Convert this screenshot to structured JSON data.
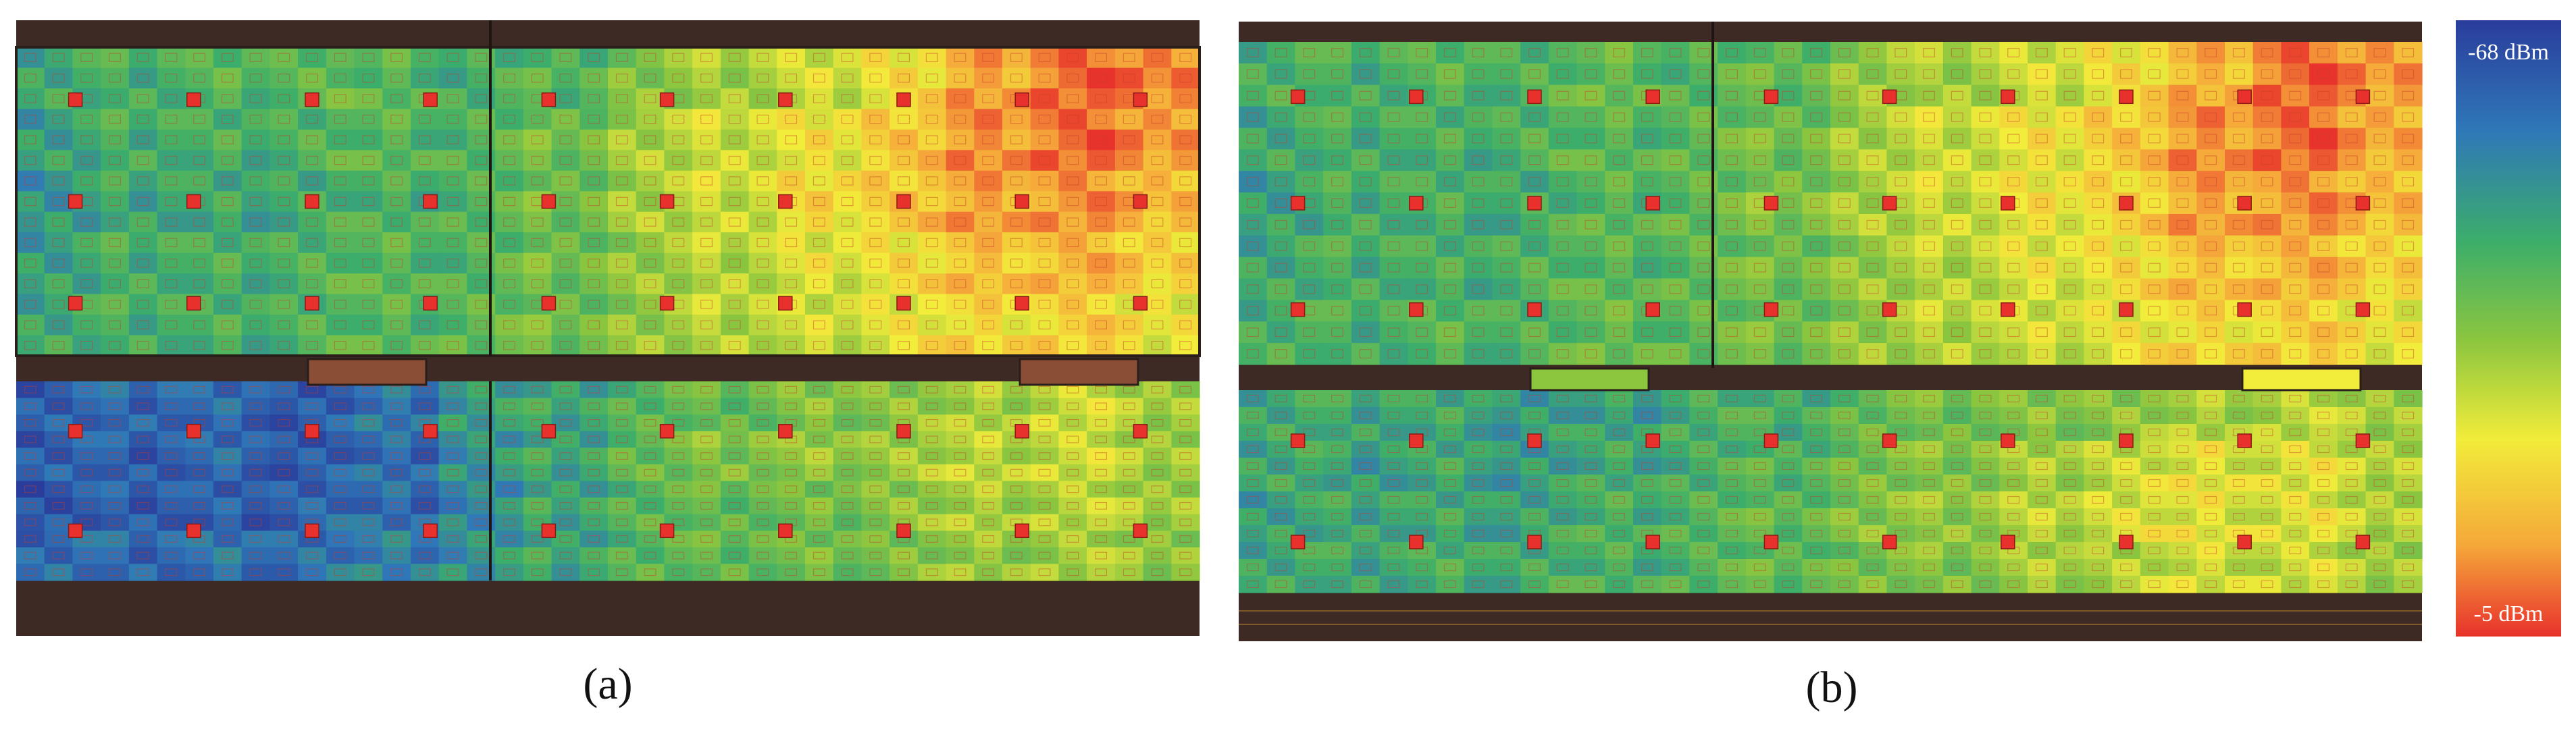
{
  "figure": {
    "panels": [
      {
        "id": "a",
        "caption": "(a)"
      },
      {
        "id": "b",
        "caption": "(b)"
      }
    ]
  },
  "colorbar": {
    "top_label": "-68 dBm",
    "bottom_label": "-5 dBm",
    "colors": [
      "#2a3d9c",
      "#2f78b8",
      "#3cae6a",
      "#8cc63f",
      "#f2ec3a",
      "#f5a93a",
      "#e8312c"
    ]
  },
  "chart_data": [
    {
      "type": "heatmap",
      "title": "",
      "caption": "(a)",
      "units": "dBm",
      "range": [
        -68,
        -5
      ],
      "rows": 5,
      "cols": 14,
      "regions": [
        "upper floor area",
        "lower floor area"
      ],
      "upper": [
        [
          -48,
          -46,
          -44,
          -42,
          -44,
          -46,
          -44,
          -38,
          -34,
          -30,
          -24,
          -16,
          -10,
          -12
        ],
        [
          -50,
          -46,
          -46,
          -44,
          -44,
          -44,
          -40,
          -34,
          -30,
          -26,
          -20,
          -14,
          -10,
          -14
        ],
        [
          -52,
          -48,
          -48,
          -46,
          -46,
          -44,
          -40,
          -34,
          -30,
          -24,
          -20,
          -16,
          -14,
          -18
        ],
        [
          -50,
          -46,
          -46,
          -44,
          -44,
          -44,
          -40,
          -36,
          -32,
          -28,
          -24,
          -20,
          -18,
          -22
        ],
        [
          -48,
          -46,
          -46,
          -44,
          -44,
          -42,
          -40,
          -36,
          -32,
          -30,
          -26,
          -24,
          -22,
          -26
        ]
      ],
      "lower": [
        [
          -62,
          -60,
          -60,
          -62,
          -58,
          -50,
          -48,
          -44,
          -42,
          -38,
          -36,
          -34,
          -30,
          -34
        ],
        [
          -62,
          -62,
          -60,
          -62,
          -60,
          -52,
          -48,
          -42,
          -38,
          -36,
          -34,
          -32,
          -30,
          -34
        ],
        [
          -64,
          -62,
          -62,
          -60,
          -60,
          -54,
          -48,
          -44,
          -42,
          -40,
          -36,
          -34,
          -32,
          -34
        ],
        [
          -60,
          -60,
          -58,
          -58,
          -56,
          -52,
          -48,
          -44,
          -42,
          -40,
          -38,
          -36,
          -34,
          -36
        ]
      ]
    },
    {
      "type": "heatmap",
      "title": "",
      "caption": "(b)",
      "units": "dBm",
      "range": [
        -68,
        -5
      ],
      "rows": 5,
      "cols": 14,
      "upper": [
        [
          -46,
          -46,
          -44,
          -44,
          -42,
          -44,
          -42,
          -36,
          -34,
          -30,
          -24,
          -18,
          -10,
          -14
        ],
        [
          -48,
          -46,
          -46,
          -44,
          -44,
          -42,
          -40,
          -34,
          -30,
          -26,
          -20,
          -14,
          -10,
          -16
        ],
        [
          -50,
          -46,
          -46,
          -46,
          -44,
          -42,
          -38,
          -34,
          -30,
          -26,
          -22,
          -16,
          -14,
          -18
        ],
        [
          -48,
          -46,
          -46,
          -44,
          -44,
          -42,
          -40,
          -36,
          -32,
          -28,
          -24,
          -20,
          -18,
          -22
        ],
        [
          -46,
          -46,
          -44,
          -44,
          -42,
          -42,
          -40,
          -36,
          -32,
          -30,
          -26,
          -24,
          -22,
          -26
        ]
      ],
      "lower": [
        [
          -48,
          -48,
          -48,
          -50,
          -50,
          -46,
          -46,
          -42,
          -40,
          -38,
          -36,
          -34,
          -32,
          -34
        ],
        [
          -48,
          -50,
          -48,
          -50,
          -48,
          -46,
          -44,
          -40,
          -38,
          -34,
          -30,
          -28,
          -28,
          -32
        ],
        [
          -50,
          -48,
          -48,
          -48,
          -46,
          -44,
          -42,
          -38,
          -36,
          -32,
          -28,
          -28,
          -28,
          -32
        ],
        [
          -48,
          -48,
          -46,
          -46,
          -46,
          -44,
          -42,
          -40,
          -38,
          -34,
          -32,
          -30,
          -30,
          -34
        ]
      ]
    }
  ]
}
